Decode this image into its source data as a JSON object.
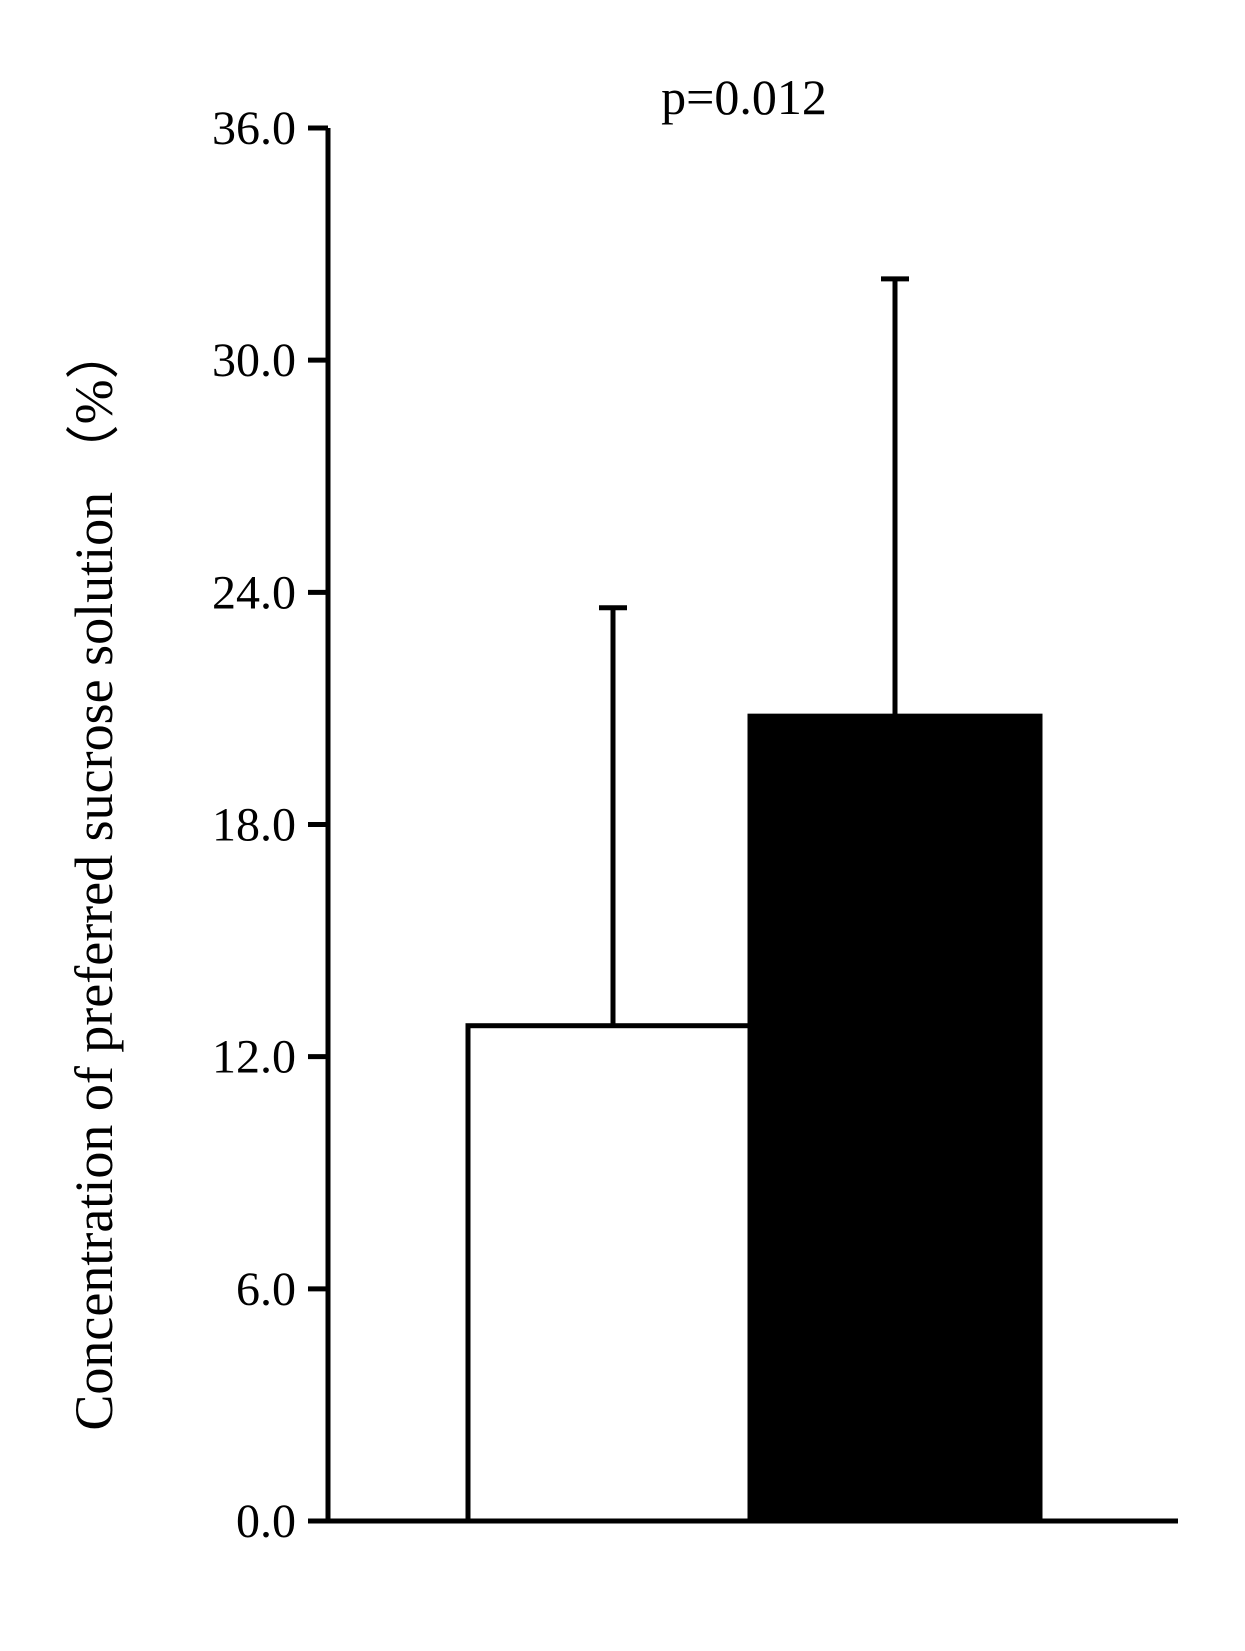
{
  "chart_data": {
    "type": "bar",
    "title": "",
    "xlabel": "",
    "ylabel": "Concentration of preferred sucrose solution （%）",
    "ylim": [
      0,
      36
    ],
    "yticks": [
      "0.0",
      "6.0",
      "12.0",
      "18.0",
      "24.0",
      "30.0",
      "36.0"
    ],
    "ytick_values": [
      0,
      6,
      12,
      18,
      24,
      30,
      36
    ],
    "grid": false,
    "legend": "none",
    "annotation": "p=0.012",
    "categories": [
      "",
      ""
    ],
    "values": [
      12.8,
      20.8
    ],
    "error_upper": [
      23.6,
      32.1
    ],
    "bar_fills": [
      "#ffffff",
      "#000000"
    ],
    "bar_stroke": "#000000"
  }
}
